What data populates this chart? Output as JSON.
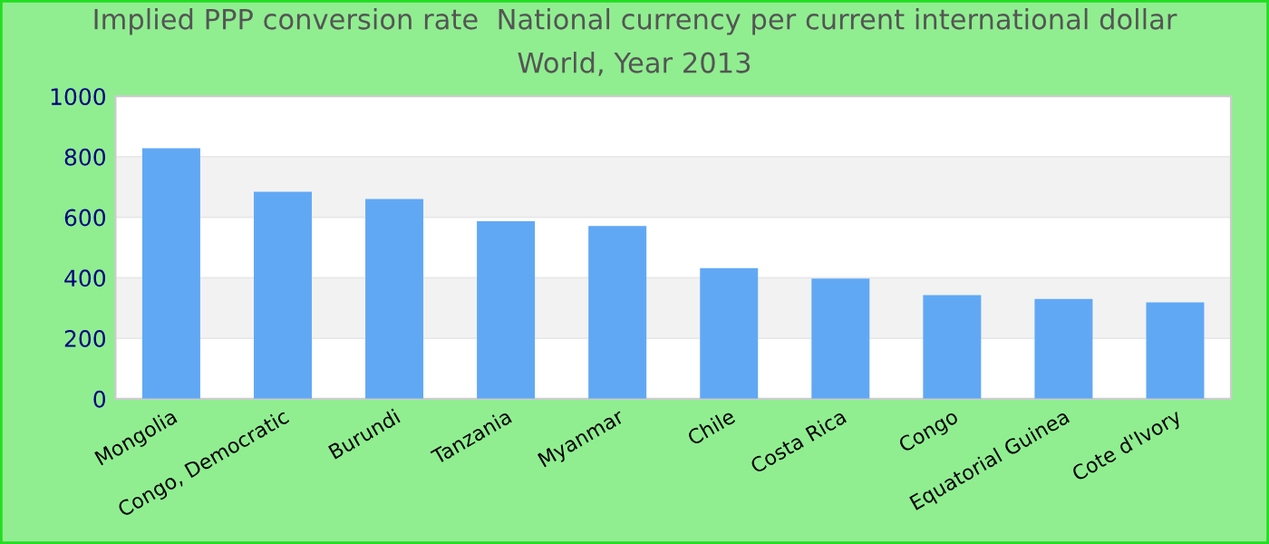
{
  "chart_data": {
    "type": "bar",
    "title": "Implied PPP conversion rate  National currency per current international dollar",
    "subtitle": "World, Year 2013",
    "categories": [
      "Mongolia",
      "Congo, Democratic",
      "Burundi",
      "Tanzania",
      "Myanmar",
      "Chile",
      "Costa Rica",
      "Congo",
      "Equatorial Guinea",
      "Cote d'Ivory"
    ],
    "values": [
      828,
      684,
      660,
      587,
      571,
      432,
      397,
      343,
      330,
      319
    ],
    "color": "#61a8f4",
    "ylim": [
      0,
      1000
    ],
    "yticks": [
      0,
      200,
      400,
      600,
      800,
      1000
    ],
    "grid": "y"
  }
}
